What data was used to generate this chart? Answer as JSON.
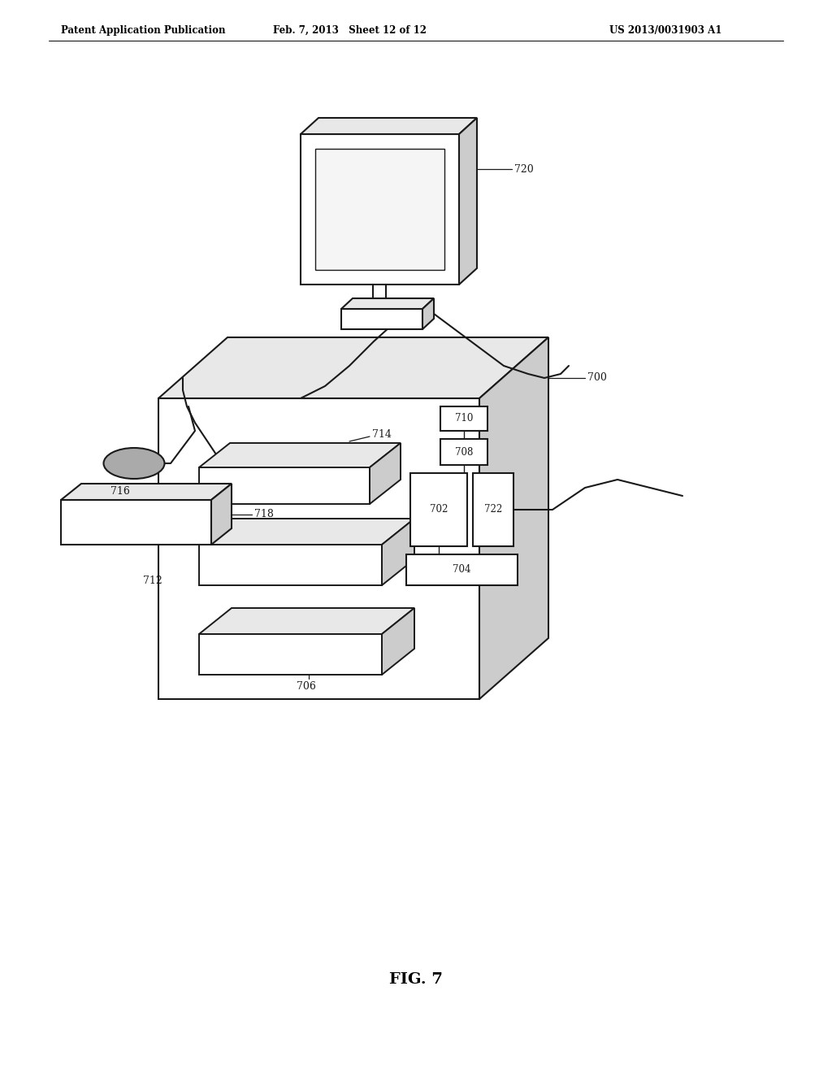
{
  "title_left": "Patent Application Publication",
  "title_mid": "Feb. 7, 2013   Sheet 12 of 12",
  "title_right": "US 2013/0031903 A1",
  "fig_label": "FIG. 7",
  "background_color": "#ffffff",
  "line_color": "#1a1a1a",
  "gray_light": "#e8e8e8",
  "gray_mid": "#cccccc",
  "gray_dark": "#aaaaaa"
}
